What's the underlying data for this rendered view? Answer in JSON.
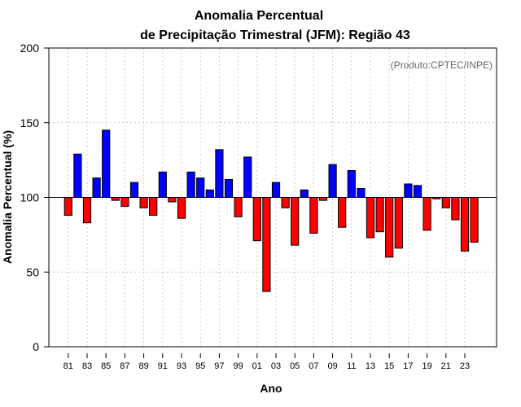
{
  "chart_data": {
    "type": "bar",
    "title": "Anomalia Percentual",
    "subtitle": "de Precipitação Trimestral (JFM): Região 43",
    "xlabel": "Ano",
    "ylabel": "Anomalia Percentual (%)",
    "source": "(Produto:CPTEC/INPE)",
    "baseline": 100,
    "ylim": [
      0,
      200
    ],
    "yticks": [
      0,
      50,
      100,
      150,
      200
    ],
    "grid": true,
    "x_tick_labels": [
      "81",
      "83",
      "85",
      "87",
      "89",
      "91",
      "93",
      "95",
      "97",
      "99",
      "01",
      "03",
      "05",
      "07",
      "09",
      "11",
      "13",
      "15",
      "17",
      "19",
      "21",
      "23"
    ],
    "categories": [
      "1981",
      "1982",
      "1983",
      "1984",
      "1985",
      "1986",
      "1987",
      "1988",
      "1989",
      "1990",
      "1991",
      "1992",
      "1993",
      "1994",
      "1995",
      "1996",
      "1997",
      "1998",
      "1999",
      "2000",
      "2001",
      "2002",
      "2003",
      "2004",
      "2005",
      "2006",
      "2007",
      "2008",
      "2009",
      "2010",
      "2011",
      "2012",
      "2013",
      "2014",
      "2015",
      "2016",
      "2017",
      "2018",
      "2019",
      "2020",
      "2021",
      "2022",
      "2023",
      "2024"
    ],
    "values": [
      88,
      129,
      83,
      113,
      145,
      98,
      94,
      110,
      93,
      88,
      117,
      97,
      86,
      117,
      113,
      105,
      132,
      112,
      87,
      127,
      71,
      37,
      110,
      93,
      68,
      105,
      76,
      98,
      122,
      80,
      118,
      106,
      73,
      77,
      60,
      66,
      109,
      108,
      78,
      99,
      93,
      85,
      64,
      70
    ],
    "colors": {
      "above": "#0000ff",
      "below": "#ff0000",
      "outline": "#000000",
      "grid": "#cccccc"
    }
  }
}
